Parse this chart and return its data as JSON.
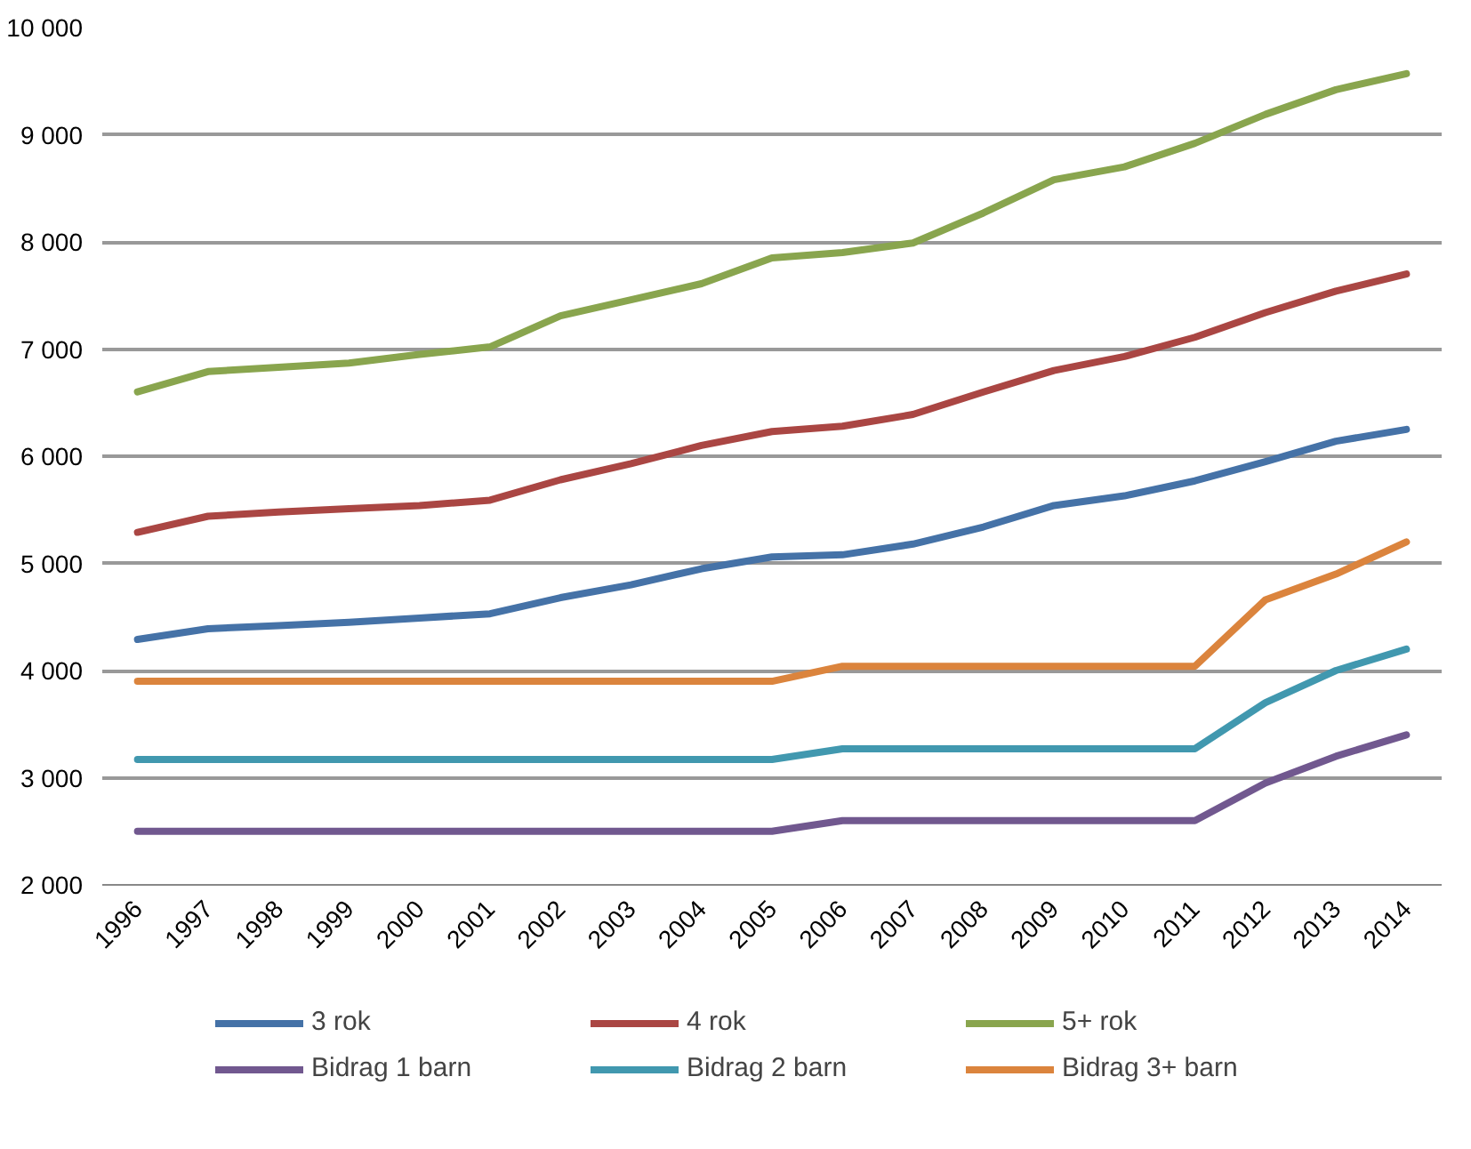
{
  "chart_data": {
    "type": "line",
    "categories": [
      "1996",
      "1997",
      "1998",
      "1999",
      "2000",
      "2001",
      "2002",
      "2003",
      "2004",
      "2005",
      "2006",
      "2007",
      "2008",
      "2009",
      "2010",
      "2011",
      "2012",
      "2013",
      "2014"
    ],
    "series": [
      {
        "name": "3 rok",
        "color": "#4572a7",
        "values": [
          4290,
          4390,
          4420,
          4450,
          4490,
          4530,
          4680,
          4800,
          4950,
          5060,
          5080,
          5180,
          5340,
          5540,
          5630,
          5770,
          5950,
          6140,
          6250
        ]
      },
      {
        "name": "4 rok",
        "color": "#aa4643",
        "values": [
          5290,
          5440,
          5480,
          5510,
          5540,
          5590,
          5780,
          5930,
          6100,
          6230,
          6280,
          6390,
          6600,
          6800,
          6930,
          7110,
          7340,
          7540,
          7700
        ]
      },
      {
        "name": "5+ rok",
        "color": "#89a54e",
        "values": [
          6600,
          6790,
          6830,
          6870,
          6950,
          7020,
          7310,
          7460,
          7610,
          7850,
          7900,
          7990,
          8270,
          8580,
          8700,
          8920,
          9190,
          9420,
          9570
        ]
      },
      {
        "name": "Bidrag 1 barn",
        "color": "#71588f",
        "values": [
          2500,
          2500,
          2500,
          2500,
          2500,
          2500,
          2500,
          2500,
          2500,
          2500,
          2600,
          2600,
          2600,
          2600,
          2600,
          2600,
          2950,
          3200,
          3400
        ]
      },
      {
        "name": "Bidrag 2 barn",
        "color": "#4198af",
        "values": [
          3170,
          3170,
          3170,
          3170,
          3170,
          3170,
          3170,
          3170,
          3170,
          3170,
          3270,
          3270,
          3270,
          3270,
          3270,
          3270,
          3700,
          4000,
          4200
        ]
      },
      {
        "name": "Bidrag 3+ barn",
        "color": "#db843d",
        "values": [
          3900,
          3900,
          3900,
          3900,
          3900,
          3900,
          3900,
          3900,
          3900,
          3900,
          4040,
          4040,
          4040,
          4040,
          4040,
          4040,
          4660,
          4900,
          5200
        ]
      }
    ],
    "ylim": [
      2000,
      10000
    ],
    "yticks": [
      {
        "value": 2000,
        "label": "2 000"
      },
      {
        "value": 3000,
        "label": "3 000"
      },
      {
        "value": 4000,
        "label": "4 000"
      },
      {
        "value": 5000,
        "label": "5 000"
      },
      {
        "value": 6000,
        "label": "6 000"
      },
      {
        "value": 7000,
        "label": "7 000"
      },
      {
        "value": 8000,
        "label": "8 000"
      },
      {
        "value": 9000,
        "label": "9 000"
      },
      {
        "value": 10000,
        "label": "10 000"
      }
    ],
    "grid": "y",
    "legend": "bottom",
    "line_style": "solid"
  }
}
